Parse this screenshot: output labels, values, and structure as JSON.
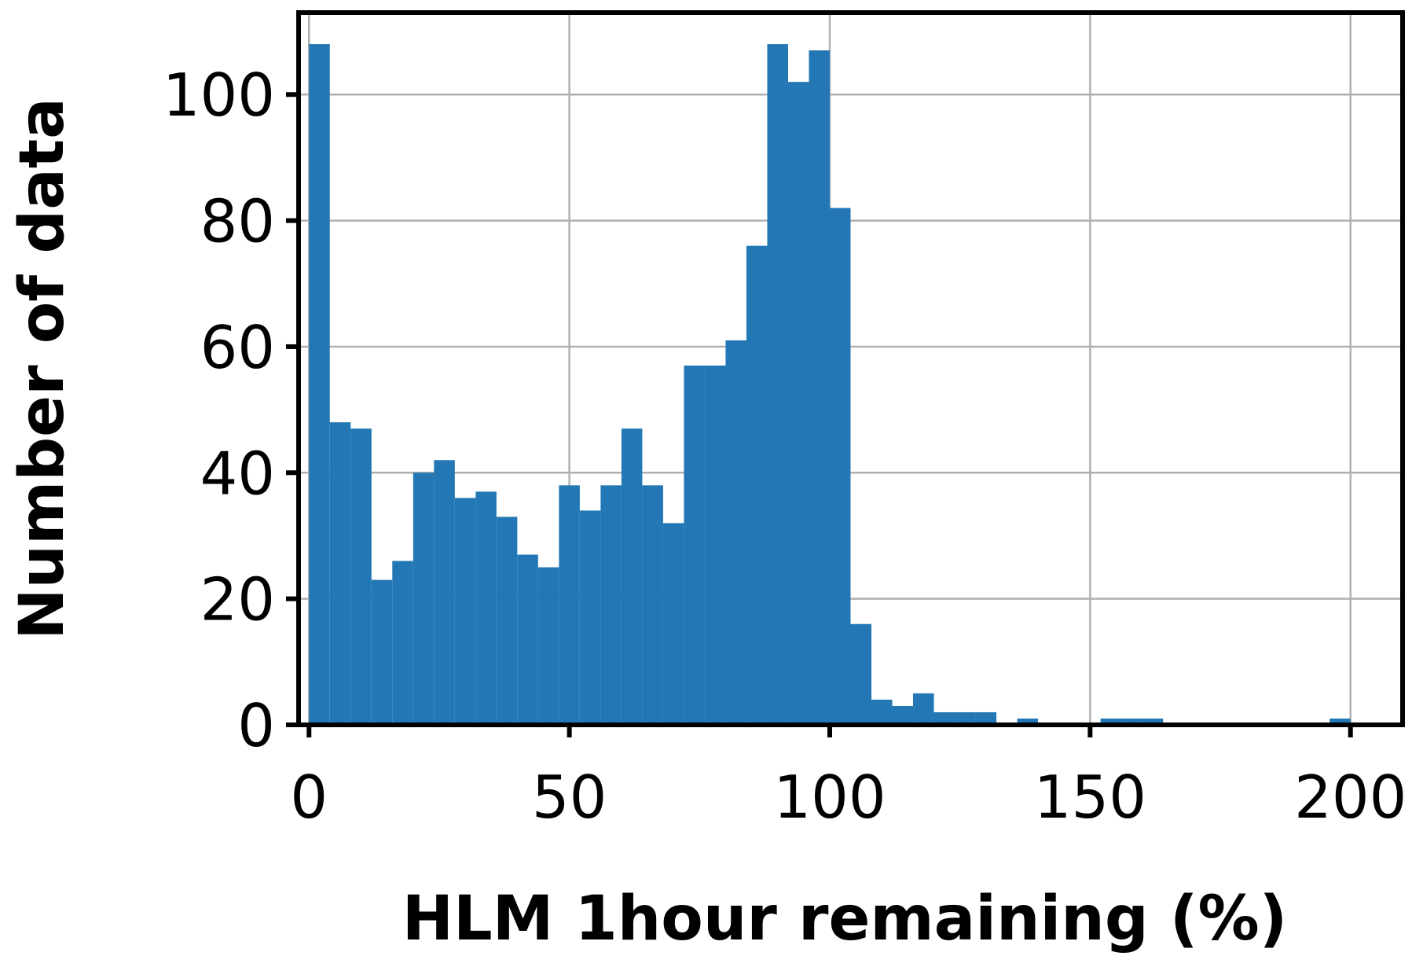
{
  "chart_data": {
    "type": "bar",
    "histogram": true,
    "title": "",
    "xlabel": "HLM 1hour remaining (%)",
    "ylabel": "Number of data",
    "xlim": [
      -2,
      210
    ],
    "ylim": [
      0,
      113
    ],
    "grid": true,
    "bar_color": "#2277b4",
    "x_ticks": [
      0,
      50,
      100,
      150,
      200
    ],
    "x_tick_labels": [
      "0",
      "50",
      "100",
      "150",
      "200"
    ],
    "y_ticks": [
      0,
      20,
      40,
      60,
      80,
      100
    ],
    "y_tick_labels": [
      "0",
      "20",
      "40",
      "60",
      "80",
      "100"
    ],
    "bin_width": 4,
    "bins_start": [
      0,
      4,
      8,
      12,
      16,
      20,
      24,
      28,
      32,
      36,
      40,
      44,
      48,
      52,
      56,
      60,
      64,
      68,
      72,
      76,
      80,
      84,
      88,
      92,
      96,
      100,
      104,
      108,
      112,
      116,
      120,
      124,
      128,
      132,
      136,
      140,
      144,
      148,
      152,
      156,
      160,
      164,
      168,
      172,
      176,
      180,
      184,
      188,
      192,
      196
    ],
    "counts": [
      108,
      48,
      47,
      23,
      26,
      40,
      42,
      36,
      37,
      33,
      27,
      25,
      38,
      34,
      38,
      47,
      38,
      32,
      57,
      57,
      61,
      76,
      108,
      102,
      107,
      82,
      16,
      4,
      3,
      5,
      2,
      2,
      2,
      0,
      1,
      0,
      0,
      0,
      1,
      1,
      1,
      0,
      0,
      0,
      0,
      0,
      0,
      0,
      0,
      1
    ]
  }
}
